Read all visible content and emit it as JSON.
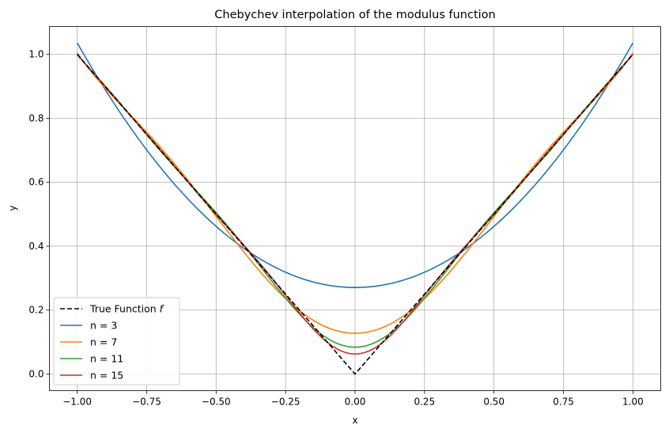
{
  "chart_data": {
    "type": "line",
    "title": "Chebychev interpolation of the modulus function",
    "xlabel": "x",
    "ylabel": "y",
    "xlim": [
      -1.1,
      1.1
    ],
    "ylim": [
      -0.052,
      1.087
    ],
    "xticks": [
      -1.0,
      -0.75,
      -0.5,
      -0.25,
      0.0,
      0.25,
      0.5,
      0.75,
      1.0
    ],
    "xtick_labels": [
      "−1.00",
      "−0.75",
      "−0.50",
      "−0.25",
      "0.00",
      "0.25",
      "0.50",
      "0.75",
      "1.00"
    ],
    "yticks": [
      0.0,
      0.2,
      0.4,
      0.6,
      0.8,
      1.0
    ],
    "ytick_labels": [
      "0.0",
      "0.2",
      "0.4",
      "0.6",
      "0.8",
      "1.0"
    ],
    "grid": true,
    "legend_position": "lower-left",
    "series": [
      {
        "name": "True Function f",
        "label_main": "True Function ",
        "label_italic": "f",
        "color": "#000000",
        "dashed": true,
        "kind": "abs"
      },
      {
        "name": "n = 3",
        "color": "#1f77b4",
        "kind": "cheb",
        "n": 3
      },
      {
        "name": "n = 7",
        "color": "#ff7f0e",
        "kind": "cheb",
        "n": 7
      },
      {
        "name": "n = 11",
        "color": "#2ca02c",
        "kind": "cheb",
        "n": 11
      },
      {
        "name": "n = 15",
        "color": "#d62728",
        "kind": "cheb",
        "n": 15
      }
    ]
  }
}
